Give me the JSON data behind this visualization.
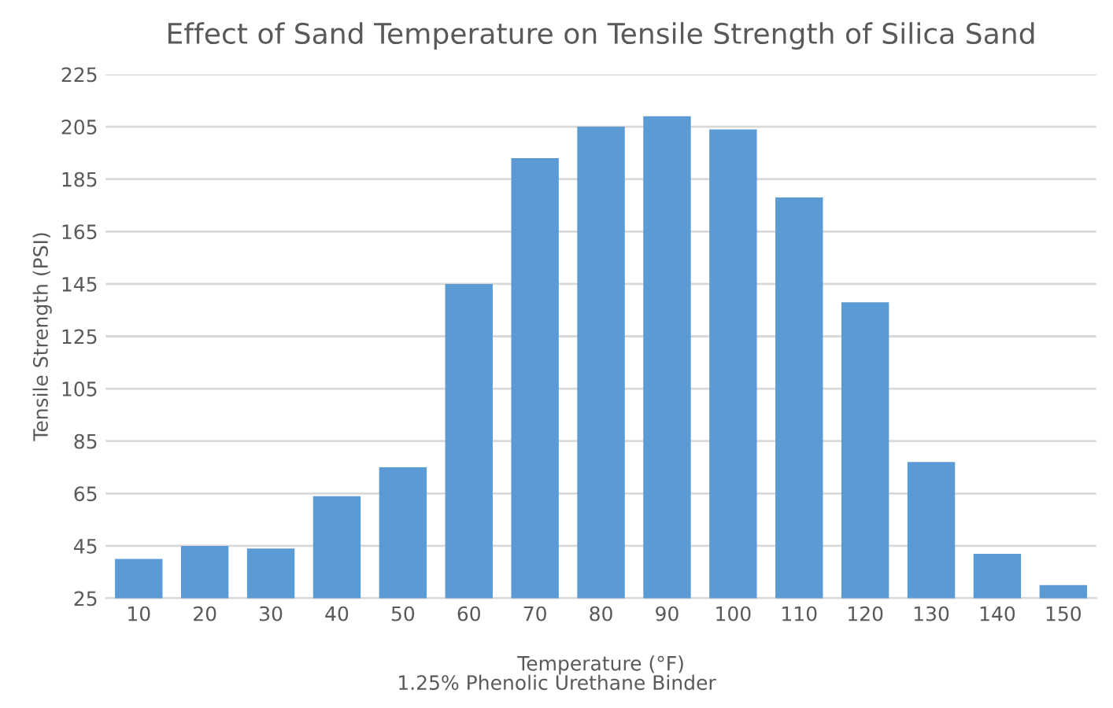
{
  "chart_data": {
    "type": "bar",
    "title": "Effect of Sand Temperature on Tensile Strength of Silica Sand",
    "xlabel": "Temperature (°F)",
    "ylabel": "Tensile Strength (PSI)",
    "annotations": [
      "1.25% Phenolic Urethane Binder"
    ],
    "categories": [
      "10",
      "20",
      "30",
      "40",
      "50",
      "60",
      "70",
      "80",
      "90",
      "100",
      "110",
      "120",
      "130",
      "140",
      "150"
    ],
    "values": [
      40,
      45,
      44,
      64,
      75,
      145,
      193,
      205,
      209,
      204,
      178,
      138,
      77,
      42,
      30
    ],
    "color": "#5b9bd5",
    "ylim": [
      25,
      225
    ],
    "yticks": [
      25,
      45,
      65,
      85,
      105,
      125,
      145,
      165,
      185,
      205,
      225
    ],
    "grid": "y",
    "legend": false
  }
}
